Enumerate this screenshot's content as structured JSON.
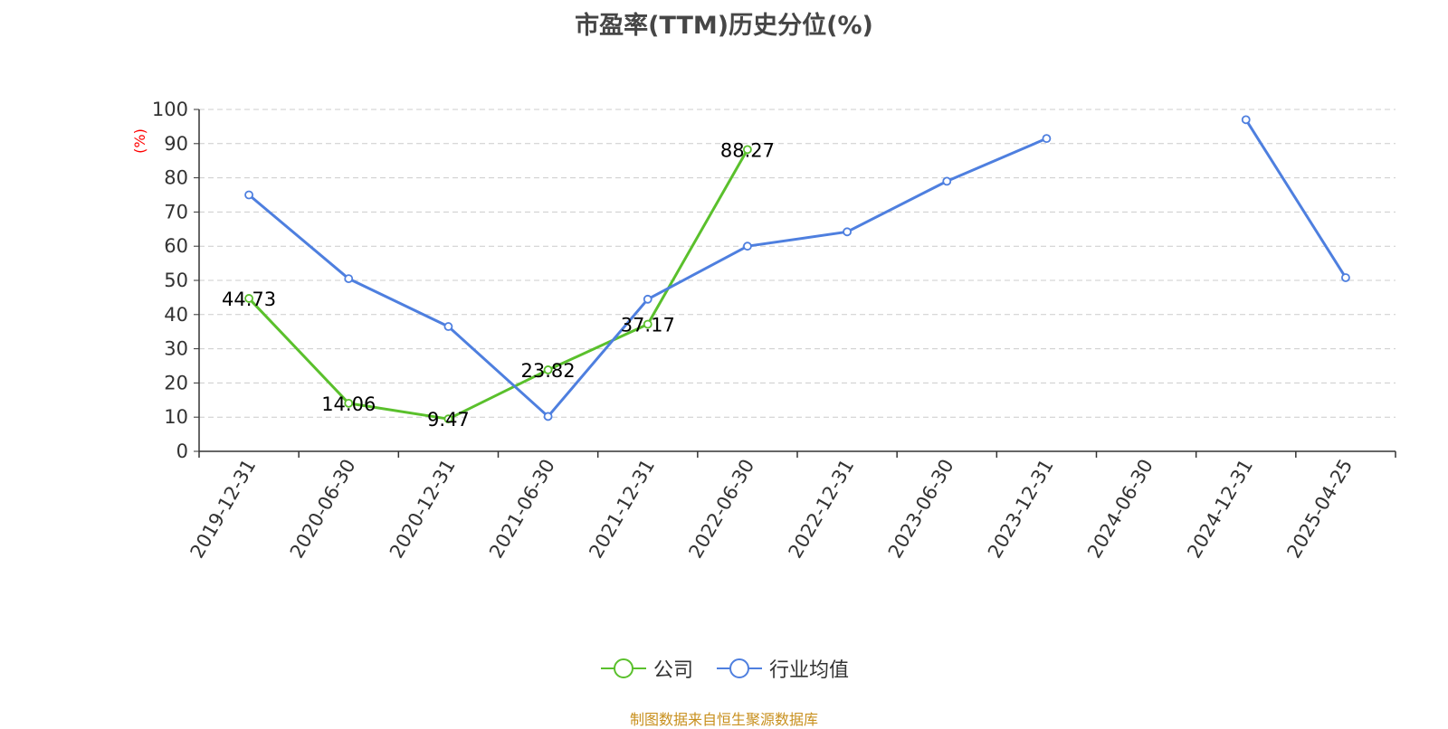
{
  "chart_data": {
    "type": "line",
    "title": "市盈率(TTM)历史分位(%)",
    "ylabel": "(%)",
    "xlabel": "",
    "ylim": [
      0,
      100
    ],
    "yticks": [
      0,
      10,
      20,
      30,
      40,
      50,
      60,
      70,
      80,
      90,
      100
    ],
    "grid": "horizontal-dashed",
    "categories": [
      "2019-12-31",
      "2020-06-30",
      "2020-12-31",
      "2021-06-30",
      "2021-12-31",
      "2022-06-30",
      "2022-12-31",
      "2023-06-30",
      "2023-12-31",
      "2024-06-30",
      "2024-12-31",
      "2025-04-25"
    ],
    "series": [
      {
        "name": "公司",
        "color": "#5ac02c",
        "values": [
          44.73,
          14.06,
          9.47,
          23.82,
          37.17,
          88.27,
          null,
          null,
          null,
          null,
          null,
          null
        ],
        "labels": [
          "44.73",
          "14.06",
          "9.47",
          "23.82",
          "37.17",
          "88.27"
        ]
      },
      {
        "name": "行业均值",
        "color": "#4e7fdf",
        "values": [
          75,
          50.5,
          36.5,
          10.2,
          44.5,
          60,
          64.2,
          79,
          91.5,
          null,
          97,
          50.8
        ]
      }
    ],
    "legend_position": "bottom-center"
  },
  "footer": {
    "source": "制图数据来自恒生聚源数据库"
  },
  "colors": {
    "axis": "#333333",
    "grid": "#cccccc",
    "ylabel": "#ff0000",
    "source": "#c8901e"
  }
}
